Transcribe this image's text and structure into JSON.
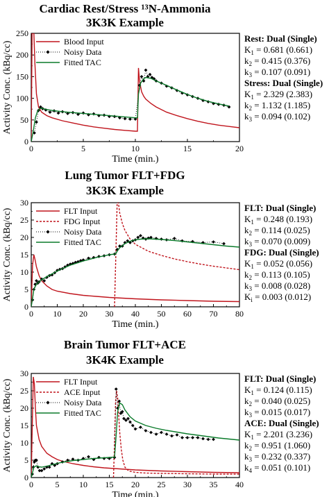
{
  "chart_data": [
    {
      "type": "line",
      "title": "Cardiac Rest/Stress ¹³N-Ammonia",
      "subtitle": "3K3K Example",
      "xlabel": "Time (min.)",
      "ylabel": "Activity Conc. (kBq/cc)",
      "xlim": [
        0,
        20
      ],
      "ylim": [
        0,
        250
      ],
      "xticks": [
        "0",
        "5",
        "10",
        "15",
        "20"
      ],
      "yticks": [
        "0",
        "50",
        "100",
        "150",
        "200",
        "250"
      ],
      "legend_position": "top-left",
      "series": [
        {
          "name": "Blood Input",
          "style": "solid",
          "color": "#c0141c",
          "x": [
            0,
            0.08,
            0.15,
            0.25,
            0.35,
            0.5,
            0.7,
            1.0,
            1.5,
            2,
            3,
            4,
            5,
            6,
            7,
            8,
            9,
            10,
            10.2,
            10.3,
            10.4,
            10.6,
            10.8,
            11,
            11.5,
            12,
            13,
            14,
            15,
            16,
            17,
            18,
            19,
            20
          ],
          "y": [
            0,
            250,
            250,
            250,
            180,
            110,
            80,
            68,
            60,
            55,
            48,
            43,
            38,
            34,
            31,
            28,
            26,
            24,
            24,
            170,
            140,
            115,
            105,
            98,
            88,
            80,
            68,
            60,
            53,
            47,
            42,
            38,
            35,
            32
          ]
        },
        {
          "name": "Noisy Data",
          "style": "dotted-markers",
          "color": "#000000",
          "x": [
            0.3,
            0.5,
            0.7,
            0.9,
            1.1,
            1.4,
            1.8,
            2.2,
            2.6,
            3,
            3.5,
            4,
            4.5,
            5,
            5.5,
            6,
            6.5,
            7,
            7.5,
            8,
            8.5,
            9,
            9.5,
            10,
            10.4,
            10.6,
            10.8,
            11,
            11.2,
            11.4,
            11.6,
            11.8,
            12,
            12.5,
            13,
            13.5,
            14,
            14.5,
            15,
            15.5,
            16,
            16.5,
            17,
            17.5,
            18,
            18.5,
            19
          ],
          "y": [
            20,
            45,
            72,
            80,
            76,
            73,
            68,
            71,
            66,
            69,
            65,
            67,
            63,
            66,
            62,
            64,
            60,
            61,
            58,
            58,
            55,
            53,
            52,
            52,
            130,
            150,
            140,
            165,
            150,
            155,
            148,
            145,
            140,
            135,
            128,
            124,
            118,
            112,
            108,
            104,
            100,
            95,
            92,
            88,
            86,
            84,
            80
          ]
        },
        {
          "name": "Fitted TAC",
          "style": "solid",
          "color": "#0a7a2a",
          "x": [
            0,
            0.2,
            0.4,
            0.6,
            0.8,
            1,
            1.5,
            2,
            3,
            4,
            5,
            6,
            7,
            8,
            9,
            10,
            10.2,
            10.3,
            10.5,
            10.8,
            11,
            11.5,
            12,
            13,
            14,
            15,
            16,
            17,
            18,
            19
          ],
          "y": [
            0,
            25,
            55,
            70,
            76,
            77,
            74,
            72,
            69,
            67,
            65,
            63,
            61,
            59,
            57,
            55,
            55,
            110,
            135,
            145,
            148,
            146,
            140,
            130,
            119,
            109,
            100,
            93,
            87,
            82
          ]
        }
      ],
      "params": [
        {
          "heading": "Rest: Dual (Single)",
          "lines": [
            {
              "sym": "K",
              "sub": "1",
              "text": " = 0.681 (0.661)"
            },
            {
              "sym": "k",
              "sub": "2",
              "text": " = 0.415 (0.376)"
            },
            {
              "sym": "k",
              "sub": "3",
              "text": " = 0.107 (0.091)"
            }
          ]
        },
        {
          "heading": "Stress: Dual (Single)",
          "lines": [
            {
              "sym": "K",
              "sub": "1",
              "text": " = 2.329 (2.383)"
            },
            {
              "sym": "k",
              "sub": "2",
              "text": " = 1.132 (1.185)"
            },
            {
              "sym": "k",
              "sub": "3",
              "text": " = 0.094 (0.102)"
            }
          ]
        }
      ]
    },
    {
      "type": "line",
      "title": "Lung Tumor FLT+FDG",
      "subtitle": "3K3K Example",
      "xlabel": "Time (min.)",
      "ylabel": "Activity Conc. (kBq/cc)",
      "xlim": [
        0,
        80
      ],
      "ylim": [
        0,
        30
      ],
      "xticks": [
        "0",
        "10",
        "20",
        "30",
        "40",
        "50",
        "60",
        "70",
        "80"
      ],
      "yticks": [
        "0",
        "5",
        "10",
        "15",
        "20",
        "25",
        "30"
      ],
      "legend_position": "top-left",
      "series": [
        {
          "name": "FLT Input",
          "style": "solid",
          "color": "#c0141c",
          "x": [
            0,
            0.5,
            1,
            1.5,
            2,
            3,
            4,
            6,
            8,
            10,
            15,
            20,
            25,
            30,
            35,
            40,
            50,
            60,
            70,
            80
          ],
          "y": [
            0,
            12,
            15,
            13.5,
            11.5,
            9,
            7.5,
            6,
            5,
            4.5,
            3.8,
            3.3,
            3,
            2.7,
            2.5,
            2.3,
            2,
            1.8,
            1.6,
            1.5
          ]
        },
        {
          "name": "FDG Input",
          "style": "dashed",
          "color": "#c0141c",
          "x": [
            32,
            32.5,
            33,
            33.5,
            34,
            35,
            36,
            38,
            40,
            45,
            50,
            55,
            60,
            65,
            70,
            75,
            80
          ],
          "y": [
            0,
            15,
            30,
            30,
            27,
            24,
            22,
            19.5,
            18,
            16,
            14.8,
            13.8,
            13,
            12.3,
            11.7,
            11.2,
            10.7
          ]
        },
        {
          "name": "Noisy Data",
          "style": "dotted-markers",
          "color": "#000000",
          "x": [
            0.5,
            1,
            1.5,
            2,
            2.5,
            3,
            4,
            5,
            6,
            7,
            8,
            9,
            10,
            11,
            12,
            13,
            14,
            15,
            16,
            17,
            18,
            19,
            20,
            22,
            24,
            26,
            28,
            30,
            32,
            33,
            34,
            35,
            36,
            37,
            38,
            39,
            40,
            41,
            42,
            43,
            44,
            45,
            46,
            48,
            50,
            52,
            55,
            58,
            62,
            66,
            70,
            74
          ],
          "y": [
            2,
            5,
            6.5,
            7.5,
            6.8,
            7.2,
            8,
            7.5,
            8.5,
            9,
            9.2,
            9.8,
            10.5,
            10.8,
            11,
            11.5,
            12,
            12.3,
            12.5,
            12.8,
            13,
            13.3,
            13.5,
            14,
            14.2,
            14.5,
            14.7,
            15,
            15.2,
            16.5,
            17.5,
            17.5,
            18.5,
            19,
            18.5,
            19,
            19.3,
            20,
            20.5,
            19.8,
            19.5,
            19.8,
            20,
            19.7,
            19.5,
            19.3,
            19.7,
            19,
            18.8,
            18.5,
            18.7,
            18.2
          ]
        },
        {
          "name": "Fitted TAC",
          "style": "solid",
          "color": "#0a7a2a",
          "x": [
            0,
            1,
            2,
            3,
            4,
            6,
            8,
            10,
            12,
            15,
            20,
            25,
            30,
            32,
            32.5,
            33,
            34,
            36,
            38,
            40,
            42,
            45,
            50,
            55,
            60,
            65,
            70,
            75,
            80
          ],
          "y": [
            0,
            5,
            6.5,
            7.2,
            7.8,
            8.7,
            9.5,
            10.3,
            11,
            12,
            13.2,
            14.2,
            15,
            15.2,
            15.3,
            16,
            17,
            18.2,
            18.9,
            19.3,
            19.5,
            19.6,
            19.4,
            19.1,
            18.7,
            18.3,
            17.9,
            17.5,
            17.2
          ]
        }
      ],
      "params": [
        {
          "heading": "FLT: Dual (Single)",
          "lines": [
            {
              "sym": "K",
              "sub": "1",
              "text": " = 0.248 (0.193)"
            },
            {
              "sym": "k",
              "sub": "2",
              "text": " = 0.114 (0.025)"
            },
            {
              "sym": "k",
              "sub": "3",
              "text": " = 0.070 (0.009)"
            }
          ]
        },
        {
          "heading": "FDG: Dual (Single)",
          "lines": [
            {
              "sym": "K",
              "sub": "1",
              "text": " = 0.052 (0.056)"
            },
            {
              "sym": "k",
              "sub": "2",
              "text": " = 0.113 (0.105)"
            },
            {
              "sym": "k",
              "sub": "3",
              "text": " = 0.008 (0.028)"
            },
            {
              "sym": "K",
              "sub": "i",
              "text": " = 0.003 (0.012)"
            }
          ]
        }
      ]
    },
    {
      "type": "line",
      "title": "Brain Tumor FLT+ACE",
      "subtitle": "3K4K Example",
      "xlabel": "Time (min.)",
      "ylabel": "Activity Conc. (kBq/cc)",
      "xlim": [
        0,
        40
      ],
      "ylim": [
        0,
        30
      ],
      "xticks": [
        "0",
        "5",
        "10",
        "15",
        "20",
        "25",
        "30",
        "35",
        "40"
      ],
      "yticks": [
        "0",
        "5",
        "10",
        "15",
        "20",
        "25",
        "30"
      ],
      "legend_position": "top-left",
      "series": [
        {
          "name": "FLT Input",
          "style": "solid",
          "color": "#c0141c",
          "x": [
            0,
            0.2,
            0.4,
            0.6,
            0.8,
            1,
            1.5,
            2,
            3,
            4,
            5,
            6,
            8,
            10,
            12,
            14,
            16,
            18,
            20,
            25,
            30,
            35,
            40
          ],
          "y": [
            0,
            15,
            29,
            27,
            20,
            15,
            11,
            9,
            7,
            6,
            5.2,
            4.7,
            4,
            3.5,
            3.1,
            2.8,
            2.6,
            2.4,
            2.2,
            1.9,
            1.7,
            1.5,
            1.4
          ]
        },
        {
          "name": "ACE Input",
          "style": "dashed",
          "color": "#c0141c",
          "x": [
            15.8,
            16,
            16.2,
            16.4,
            16.6,
            16.8,
            17,
            17.3,
            17.6,
            18,
            18.5,
            19,
            20,
            22,
            25,
            30,
            35,
            40
          ],
          "y": [
            0,
            10,
            22,
            25,
            23,
            18,
            13,
            8,
            5,
            3,
            2.2,
            1.8,
            1.5,
            1.3,
            1.2,
            1.1,
            1.0,
            1.0
          ]
        },
        {
          "name": "Noisy Data",
          "style": "dotted-markers",
          "color": "#000000",
          "x": [
            0.2,
            0.4,
            0.6,
            0.8,
            1,
            1.3,
            1.6,
            2,
            2.5,
            3,
            3.5,
            4,
            4.5,
            5,
            6,
            7,
            8,
            9,
            10,
            11,
            12,
            13,
            14,
            15,
            16,
            16.3,
            16.6,
            16.9,
            17.2,
            17.5,
            17.8,
            18.2,
            18.6,
            19,
            19.5,
            20,
            21,
            22,
            23,
            24,
            25,
            26,
            27,
            28,
            29,
            30,
            31,
            32,
            33,
            34,
            35
          ],
          "y": [
            1,
            3,
            4.5,
            5,
            5,
            3,
            2,
            2,
            2.5,
            3,
            3,
            4,
            3.5,
            4,
            4.5,
            5,
            5.3,
            5,
            5.5,
            6,
            5.2,
            5.8,
            5.5,
            5.5,
            5.8,
            25.5,
            20,
            22,
            18.5,
            19,
            17,
            16.5,
            17,
            16,
            15,
            14,
            14.5,
            13.5,
            13,
            12.5,
            13,
            12.5,
            12,
            12.3,
            11.5,
            11.5,
            11.5,
            11.5,
            11.2,
            11,
            11
          ]
        },
        {
          "name": "Fitted TAC",
          "style": "solid",
          "color": "#0a7a2a",
          "x": [
            0,
            0.5,
            1,
            1.5,
            2,
            3,
            4,
            5,
            6,
            8,
            10,
            12,
            14,
            16,
            16.3,
            16.6,
            17,
            17.5,
            18,
            19,
            20,
            22,
            24,
            26,
            28,
            30,
            32,
            34,
            36,
            38,
            40
          ],
          "y": [
            0,
            3,
            3.4,
            3.1,
            3.0,
            3.3,
            3.7,
            4.1,
            4.4,
            4.9,
            5.2,
            5.5,
            5.7,
            5.9,
            12,
            19,
            21.5,
            21,
            19.5,
            17.5,
            16.3,
            15,
            14.2,
            13.6,
            13.1,
            12.6,
            12.2,
            11.8,
            11.4,
            11.1,
            10.8
          ]
        }
      ],
      "params": [
        {
          "heading": "FLT: Dual (Single)",
          "lines": [
            {
              "sym": "K",
              "sub": "1",
              "text": " = 0.124 (0.115)"
            },
            {
              "sym": "k",
              "sub": "2",
              "text": " = 0.040 (0.025)"
            },
            {
              "sym": "k",
              "sub": "3",
              "text": " = 0.015 (0.017)"
            }
          ]
        },
        {
          "heading": "ACE: Dual (Single)",
          "lines": [
            {
              "sym": "K",
              "sub": "1",
              "text": " = 2.201 (3.236)"
            },
            {
              "sym": "k",
              "sub": "2",
              "text": " = 0.951 (1.060)"
            },
            {
              "sym": "k",
              "sub": "3",
              "text": " = 0.232 (0.337)"
            },
            {
              "sym": "k",
              "sub": "4",
              "text": " = 0.051 (0.101)"
            }
          ]
        }
      ]
    }
  ]
}
